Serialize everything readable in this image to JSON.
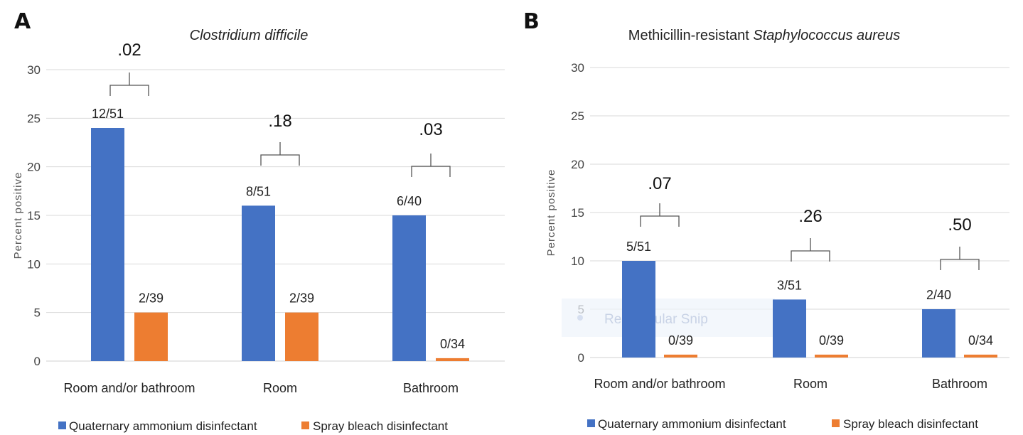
{
  "colors": {
    "quaternary": "#4472c4",
    "bleach": "#ed7d31",
    "grid": "#d9d9d9"
  },
  "chart_data": [
    {
      "type": "bar",
      "panel": "A",
      "title": "Clostridium difficile",
      "title_prefix": "",
      "ylabel": "Percent positive",
      "xlabel": "",
      "ylim": [
        0,
        30
      ],
      "yticks": [
        0,
        5,
        10,
        15,
        20,
        25,
        30
      ],
      "grid": true,
      "legend_position": "bottom",
      "categories": [
        "Room and/or bathroom",
        "Room",
        "Bathroom"
      ],
      "series": [
        {
          "name": "Quaternary ammonium disinfectant",
          "values": [
            24,
            16,
            15
          ],
          "labels": [
            "12/51",
            "8/51",
            "6/40"
          ]
        },
        {
          "name": "Spray bleach disinfectant",
          "values": [
            5,
            5,
            0.3
          ],
          "labels": [
            "2/39",
            "2/39",
            "0/34"
          ]
        }
      ],
      "p_values": [
        ".02",
        ".18",
        ".03"
      ]
    },
    {
      "type": "bar",
      "panel": "B",
      "title": "Staphylococcus aureus",
      "title_prefix": "Methicillin-resistant",
      "ylabel": "Percent positive",
      "xlabel": "",
      "ylim": [
        0,
        30
      ],
      "yticks": [
        0,
        5,
        10,
        15,
        20,
        25,
        30
      ],
      "grid": true,
      "legend_position": "bottom",
      "categories": [
        "Room and/or bathroom",
        "Room",
        "Bathroom"
      ],
      "series": [
        {
          "name": "Quaternary ammonium disinfectant",
          "values": [
            10,
            6,
            5
          ],
          "labels": [
            "5/51",
            "3/51",
            "2/40"
          ]
        },
        {
          "name": "Spray bleach disinfectant",
          "values": [
            0.3,
            0.3,
            0.3
          ],
          "labels": [
            "0/39",
            "0/39",
            "0/34"
          ]
        }
      ],
      "p_values": [
        ".07",
        ".26",
        ".50"
      ],
      "overlay_text": "Rectangular Snip"
    }
  ]
}
